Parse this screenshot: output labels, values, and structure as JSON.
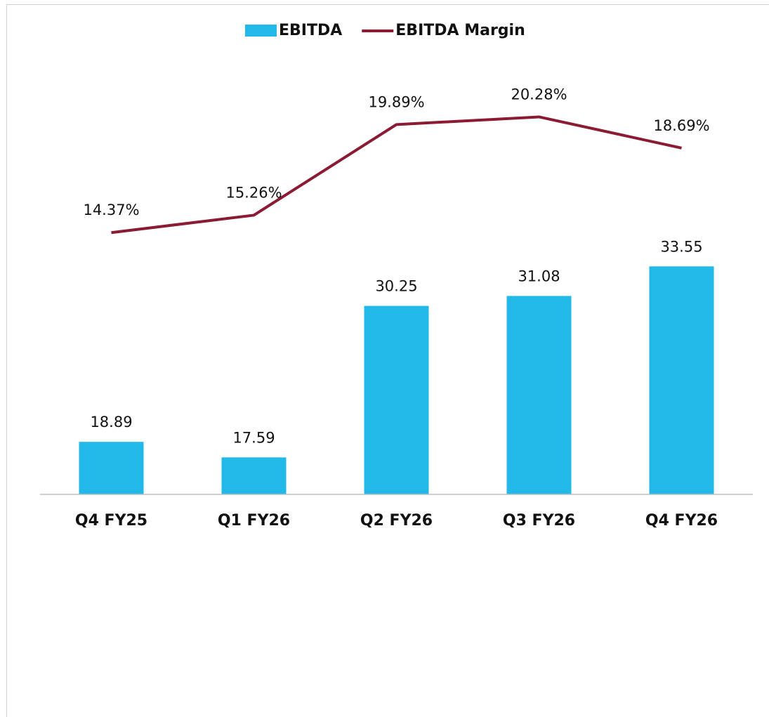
{
  "chart_data": {
    "type": "bar-line",
    "categories": [
      "Q4 FY25",
      "Q1 FY26",
      "Q2 FY26",
      "Q3 FY26",
      "Q4 FY26"
    ],
    "series": [
      {
        "name": "EBITDA",
        "type": "bar",
        "color": "#22b8e8",
        "values": [
          18.89,
          17.59,
          30.25,
          31.08,
          33.55
        ]
      },
      {
        "name": "EBITDA Margin",
        "type": "line",
        "axis": "y2",
        "color": "#8b1a33",
        "values": [
          14.37,
          15.26,
          19.89,
          20.28,
          18.69
        ],
        "value_labels": [
          "14.37%",
          "15.26%",
          "19.89%",
          "20.28%",
          "18.69%"
        ]
      }
    ],
    "ylim": [
      14.5,
      50
    ],
    "y2lim": [
      1,
      22.7
    ],
    "legend": "top"
  }
}
